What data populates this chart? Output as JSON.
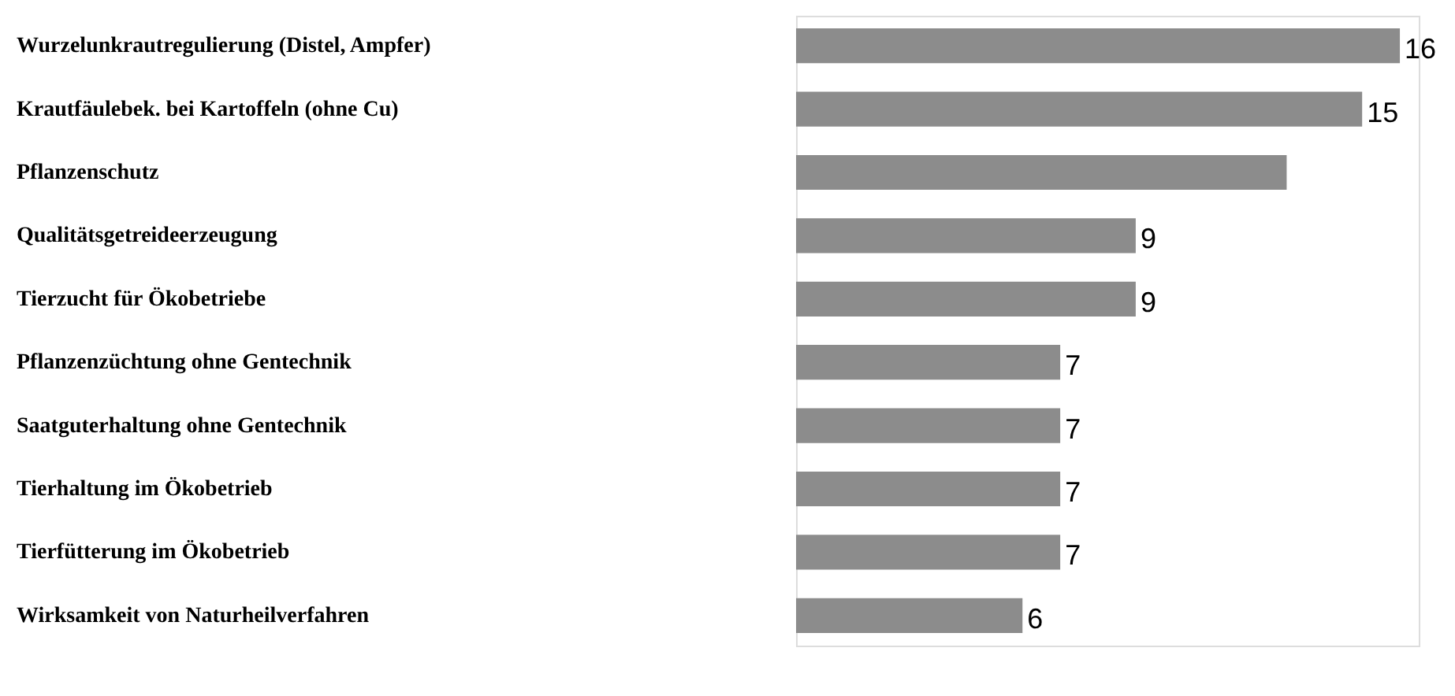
{
  "chart_data": {
    "type": "bar",
    "orientation": "horizontal",
    "categories": [
      "Wurzelunkrautregulierung (Distel, Ampfer)",
      "Krautfäulebek. bei Kartoffeln (ohne Cu)",
      "Pflanzenschutz",
      "Qualitätsgetreideerzeugung",
      "Tierzucht für Ökobetriebe",
      "Pflanzenzüchtung ohne Gentechnik",
      "Saatguterhaltung ohne Gentechnik",
      "Tierhaltung im Ökobetrieb",
      "Tierfütterung im Ökobetrieb",
      "Wirksamkeit von Naturheilverfahren"
    ],
    "values": [
      16,
      15,
      13,
      9,
      9,
      7,
      7,
      7,
      7,
      6
    ],
    "value_labels": [
      "16",
      "15",
      null,
      "9",
      "9",
      "7",
      "7",
      "7",
      "7",
      "6"
    ],
    "color": "#8c8c8c",
    "xlim": [
      0,
      16.5
    ],
    "grid": false
  }
}
